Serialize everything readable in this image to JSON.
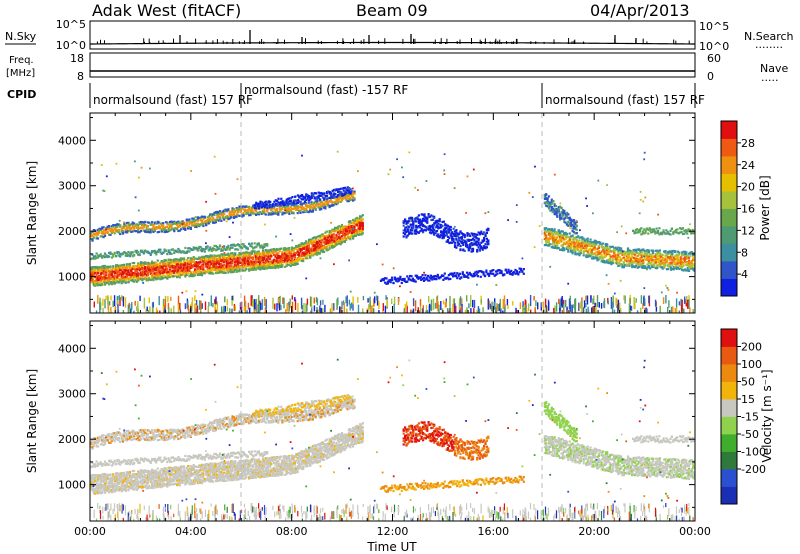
{
  "header": {
    "station": "Adak West (fitACF)",
    "beam": "Beam 09",
    "date": "04/Apr/2013"
  },
  "strips": {
    "nsky": {
      "left_label": "N.Sky",
      "left_ticks": [
        "10^5",
        "10^0"
      ],
      "right_ticks": [
        "10^5",
        "10^0"
      ],
      "right_label": "N.Search",
      "right_legend": "........"
    },
    "freq": {
      "left_label_1": "Freq.",
      "left_label_2": "[MHz]",
      "left_ticks": [
        "18",
        "8"
      ],
      "right_ticks": [
        "60",
        "0"
      ],
      "right_label": "Nave",
      "right_legend": "....."
    },
    "cpid": {
      "label": "CPID",
      "segments": [
        {
          "text": "normalsound (fast) 157 RF"
        },
        {
          "text": "normalsound (fast) -157 RF"
        },
        {
          "text": "normalsound (fast) 157 RF"
        }
      ]
    }
  },
  "colors": {
    "power": [
      "#1020e0",
      "#2f55c8",
      "#3b8fa0",
      "#4e9a72",
      "#69a84a",
      "#a6c23c",
      "#e6c000",
      "#f09010",
      "#ee5a12",
      "#e01010"
    ],
    "velocity": [
      "#1b2fb5",
      "#2a4fd0",
      "#2f7a3a",
      "#3fae2c",
      "#8fd24e",
      "#c8c8c0",
      "#f2b40a",
      "#ec8a10",
      "#e85a12",
      "#e01010"
    ],
    "line": "#000000"
  },
  "chart_data": [
    {
      "type": "heatmap",
      "title": "",
      "ylabel": "Slant Range [km]",
      "xlabel": "",
      "ylim": [
        200,
        4600
      ],
      "yticks": [
        "1000",
        "2000",
        "3000",
        "4000"
      ],
      "colorbar_label": "Power [dB]",
      "colorbar_ticks": [
        "4",
        "8",
        "12",
        "16",
        "20",
        "24",
        "28"
      ],
      "colorbar_range": [
        0,
        32
      ]
    },
    {
      "type": "heatmap",
      "title": "",
      "ylabel": "Slant Range [km]",
      "xlabel": "Time UT",
      "ylim": [
        200,
        4600
      ],
      "xlim": [
        "00:00",
        "24:00"
      ],
      "yticks": [
        "1000",
        "2000",
        "3000",
        "4000"
      ],
      "xticks": [
        "00:00",
        "04:00",
        "08:00",
        "12:00",
        "16:00",
        "20:00",
        "00:00"
      ],
      "colorbar_label": "Velocity [m s⁻¹]",
      "colorbar_ticks": [
        "200",
        "100",
        "50",
        "15",
        "-15",
        "-50",
        "-100",
        "-200"
      ]
    }
  ]
}
